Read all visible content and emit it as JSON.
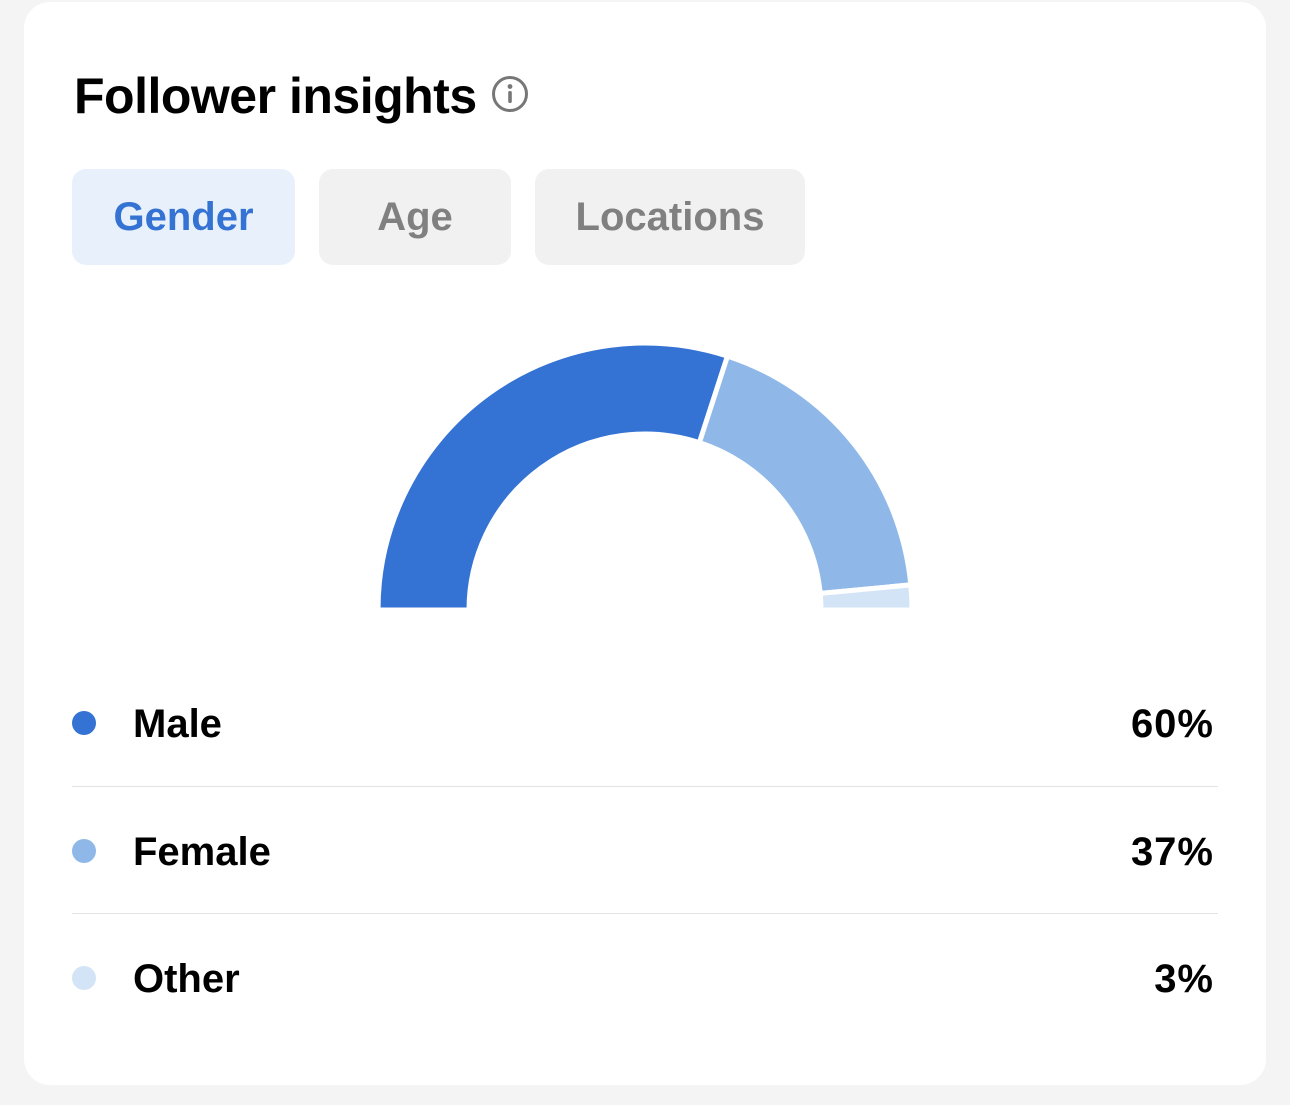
{
  "header": {
    "title": "Follower insights",
    "info_icon": "info-circle-icon"
  },
  "tabs": [
    {
      "label": "Gender",
      "active": true
    },
    {
      "label": "Age",
      "active": false
    },
    {
      "label": "Locations",
      "active": false
    }
  ],
  "colors": {
    "male": "#3473d3",
    "female": "#8fb8e8",
    "other": "#d3e4f6",
    "active_tab_text": "#3473d3",
    "active_tab_bg": "#e8f1fb",
    "inactive_tab_text": "#808080",
    "inactive_tab_bg": "#f1f1f1"
  },
  "chart_data": {
    "type": "pie",
    "shape": "semi-donut",
    "categories": [
      "Male",
      "Female",
      "Other"
    ],
    "values": [
      60,
      37,
      3
    ],
    "unit": "%"
  },
  "legend": [
    {
      "label": "Male",
      "value": "60%",
      "color": "#3473d3"
    },
    {
      "label": "Female",
      "value": "37%",
      "color": "#8fb8e8"
    },
    {
      "label": "Other",
      "value": "3%",
      "color": "#d3e4f6"
    }
  ]
}
